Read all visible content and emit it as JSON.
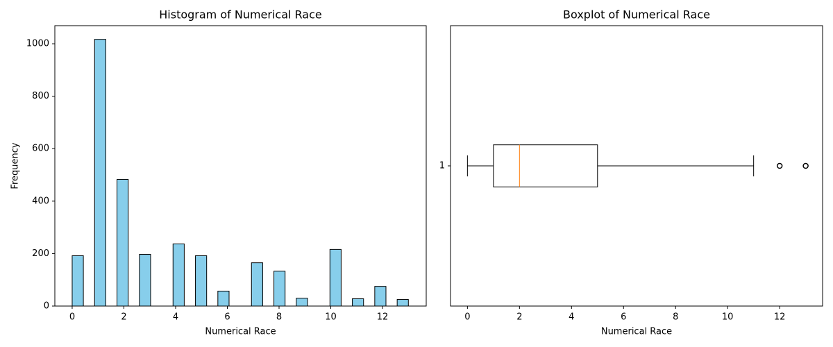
{
  "chart_data": [
    {
      "type": "histogram",
      "title": "Histogram of Numerical Race",
      "x_label": "Numerical Race",
      "y_label": "Frequency",
      "bins": [
        0,
        0.433,
        0.867,
        1.3,
        1.733,
        2.167,
        2.6,
        3.033,
        3.467,
        3.9,
        4.333,
        4.767,
        5.2,
        5.633,
        6.067,
        6.5,
        6.933,
        7.367,
        7.8,
        8.233,
        8.667,
        9.1,
        9.533,
        9.967,
        10.4,
        10.833,
        11.267,
        11.7,
        12.133,
        12.567,
        13
      ],
      "values": [
        192,
        0,
        1017,
        0,
        483,
        0,
        197,
        0,
        0,
        237,
        0,
        192,
        0,
        57,
        0,
        0,
        165,
        0,
        133,
        0,
        30,
        0,
        0,
        216,
        0,
        28,
        0,
        75,
        0,
        25
      ],
      "color": "#87ceeb",
      "edge_color": "#000000",
      "xlim": [
        -0.67,
        13.69
      ],
      "xticks": [
        0,
        2,
        4,
        6,
        8,
        10,
        12
      ],
      "ylim": [
        0,
        1069
      ],
      "yticks": [
        0,
        200,
        400,
        600,
        800,
        1000
      ]
    },
    {
      "type": "boxplot",
      "title": "Boxplot of Numerical Race",
      "x_label": "Numerical Race",
      "orientation": "horizontal",
      "whislo": 0,
      "q1": 1,
      "med": 2,
      "q3": 5,
      "whishi": 11,
      "fliers": [
        12,
        13
      ],
      "position": 1,
      "box_width": 0.15,
      "median_color": "#ff7f0e",
      "color": "#000000",
      "xlim": [
        -0.65,
        13.65
      ],
      "xticks": [
        0,
        2,
        4,
        6,
        8,
        10,
        12
      ],
      "ylim": [
        0.5,
        1.5
      ],
      "yticks": [
        1
      ]
    }
  ]
}
